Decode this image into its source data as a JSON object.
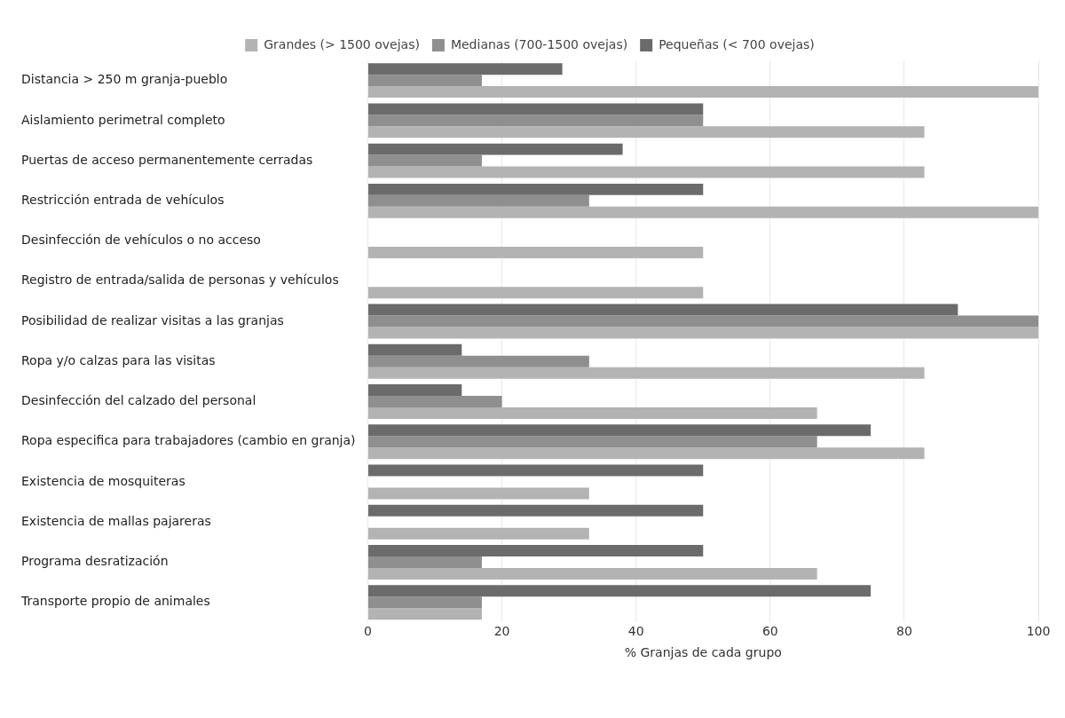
{
  "chart_data": {
    "type": "bar",
    "orientation": "horizontal",
    "xlabel": "% Granjas de cada grupo",
    "categories": [
      "Distancia > 250 m granja-pueblo",
      "Aislamiento perimetral completo",
      "Puertas de acceso permanentemente cerradas",
      "Restricción entrada de vehículos",
      "Desinfección de vehículos o no acceso",
      "Registro de entrada/salida de personas y vehículos",
      "Posibilidad de realizar visitas a las granjas",
      "Ropa y/o calzas para las visitas",
      "Desinfección del calzado del personal",
      "Ropa especifica para trabajadores (cambio en granja)",
      "Existencia de mosquiteras",
      "Existencia de mallas pajareras",
      "Programa desratización",
      "Transporte propio de animales"
    ],
    "series": [
      {
        "name": "Pequeñas (< 700 ovejas)",
        "color": "#6b6b6b",
        "values": [
          29,
          50,
          38,
          50,
          0,
          0,
          88,
          14,
          14,
          75,
          50,
          50,
          50,
          75
        ]
      },
      {
        "name": "Medianas (700-1500 ovejas)",
        "color": "#8f8f8f",
        "values": [
          17,
          50,
          17,
          33,
          0,
          0,
          100,
          33,
          20,
          67,
          0,
          0,
          17,
          17
        ]
      },
      {
        "name": "Grandes (> 1500 ovejas)",
        "color": "#b3b3b3",
        "values": [
          100,
          83,
          83,
          100,
          50,
          50,
          100,
          83,
          67,
          83,
          33,
          33,
          67,
          17
        ]
      }
    ],
    "xlim": [
      0,
      100
    ],
    "xticks": [
      0,
      20,
      40,
      60,
      80,
      100
    ],
    "grid": "x",
    "legend": "top"
  }
}
